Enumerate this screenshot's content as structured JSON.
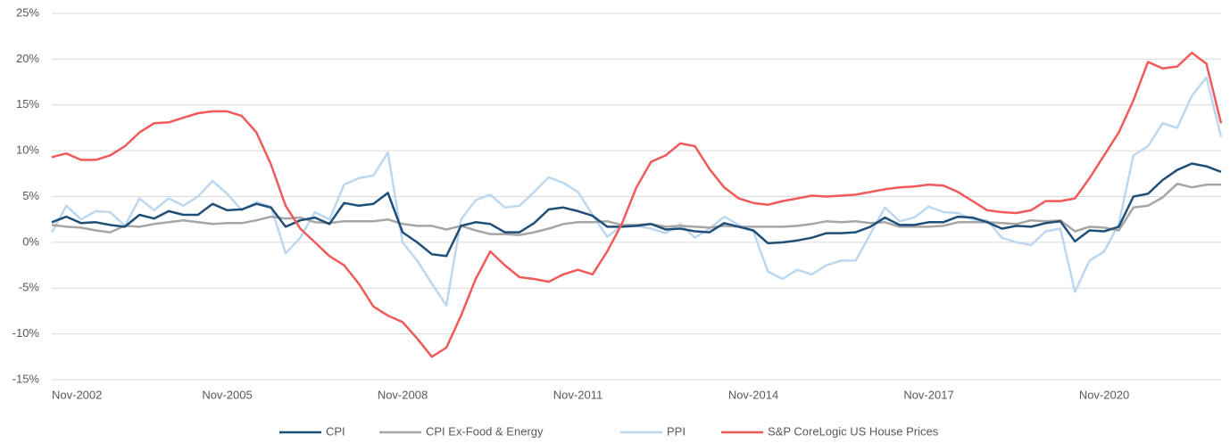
{
  "chart_data": {
    "type": "line",
    "categories": [
      "Nov-2002",
      null,
      null,
      null,
      null,
      null,
      null,
      null,
      null,
      null,
      null,
      null,
      "Nov-2005",
      null,
      null,
      null,
      null,
      null,
      null,
      null,
      null,
      null,
      null,
      null,
      "Nov-2008",
      null,
      null,
      null,
      null,
      null,
      null,
      null,
      null,
      null,
      null,
      null,
      "Nov-2011",
      null,
      null,
      null,
      null,
      null,
      null,
      null,
      null,
      null,
      null,
      null,
      "Nov-2014",
      null,
      null,
      null,
      null,
      null,
      null,
      null,
      null,
      null,
      null,
      null,
      "Nov-2017",
      null,
      null,
      null,
      null,
      null,
      null,
      null,
      null,
      null,
      null,
      null,
      "Nov-2020",
      null,
      null,
      null,
      null,
      null,
      null,
      null,
      null
    ],
    "series": [
      {
        "name": "CPI",
        "color": "#1f4e79",
        "values": [
          2.2,
          2.8,
          2.1,
          2.2,
          1.9,
          1.7,
          3.0,
          2.6,
          3.4,
          3.0,
          3.0,
          4.2,
          3.5,
          3.6,
          4.2,
          3.8,
          1.7,
          2.4,
          2.7,
          2.0,
          4.3,
          4.0,
          4.2,
          5.4,
          1.1,
          0.0,
          -1.3,
          -1.5,
          1.8,
          2.2,
          2.0,
          1.1,
          1.1,
          2.1,
          3.6,
          3.8,
          3.4,
          2.9,
          1.7,
          1.7,
          1.8,
          2.0,
          1.4,
          1.5,
          1.2,
          1.1,
          2.1,
          1.7,
          1.3,
          -0.1,
          0.0,
          0.2,
          0.5,
          1.0,
          1.0,
          1.1,
          1.7,
          2.7,
          1.9,
          1.9,
          2.2,
          2.2,
          2.8,
          2.7,
          2.2,
          1.5,
          1.8,
          1.7,
          2.1,
          2.3,
          0.1,
          1.3,
          1.2,
          1.7,
          5.0,
          5.3,
          6.8,
          7.9,
          8.6,
          8.3,
          7.7
        ]
      },
      {
        "name": "CPI Ex-Food & Energy",
        "color": "#a6a6a6",
        "values": [
          1.9,
          1.7,
          1.6,
          1.3,
          1.1,
          1.8,
          1.7,
          2.0,
          2.2,
          2.4,
          2.2,
          2.0,
          2.1,
          2.1,
          2.4,
          2.8,
          2.6,
          2.7,
          2.2,
          2.1,
          2.3,
          2.3,
          2.3,
          2.5,
          2.0,
          1.8,
          1.8,
          1.4,
          1.8,
          1.3,
          0.9,
          0.9,
          0.8,
          1.1,
          1.5,
          2.0,
          2.2,
          2.2,
          2.3,
          1.9,
          1.9,
          2.0,
          1.7,
          1.8,
          1.7,
          1.6,
          1.8,
          1.7,
          1.7,
          1.7,
          1.7,
          1.8,
          2.0,
          2.3,
          2.2,
          2.3,
          2.1,
          2.2,
          1.7,
          1.7,
          1.7,
          1.8,
          2.2,
          2.2,
          2.2,
          2.1,
          2.0,
          2.4,
          2.3,
          2.4,
          1.2,
          1.7,
          1.6,
          1.3,
          3.8,
          4.0,
          4.9,
          6.4,
          6.0,
          6.3,
          6.3
        ]
      },
      {
        "name": "PPI",
        "color": "#bdd7ee",
        "values": [
          1.1,
          4.0,
          2.5,
          3.4,
          3.3,
          1.8,
          4.8,
          3.5,
          4.8,
          4.0,
          5.0,
          6.7,
          5.3,
          3.5,
          4.4,
          3.9,
          -1.2,
          0.5,
          3.3,
          2.5,
          6.3,
          7.0,
          7.3,
          9.8,
          0.0,
          -2.0,
          -4.5,
          -6.9,
          2.5,
          4.6,
          5.2,
          3.8,
          4.0,
          5.5,
          7.1,
          6.5,
          5.5,
          3.0,
          0.6,
          1.8,
          1.8,
          1.5,
          1.0,
          2.0,
          0.5,
          1.5,
          2.8,
          1.9,
          1.2,
          -3.2,
          -4.0,
          -3.0,
          -3.5,
          -2.5,
          -2.0,
          -2.0,
          0.9,
          3.8,
          2.3,
          2.7,
          3.9,
          3.3,
          3.2,
          2.5,
          2.4,
          0.5,
          0.0,
          -0.3,
          1.2,
          1.5,
          -5.4,
          -2.0,
          -1.0,
          2.0,
          9.5,
          10.5,
          13.0,
          12.5,
          16.0,
          18.0,
          11.5
        ]
      },
      {
        "name": "S&P CoreLogic US House Prices",
        "color": "#f05a5b",
        "values": [
          9.3,
          9.7,
          9.0,
          9.0,
          9.5,
          10.5,
          12.0,
          13.0,
          13.1,
          13.6,
          14.1,
          14.3,
          14.3,
          13.8,
          12.0,
          8.5,
          4.0,
          1.5,
          0,
          -1.5,
          -2.5,
          -4.5,
          -7.0,
          -8.0,
          -8.7,
          -10.5,
          -12.5,
          -11.5,
          -8.0,
          -4.0,
          -1.0,
          -2.5,
          -3.8,
          -4.0,
          -4.3,
          -3.5,
          -3.0,
          -3.5,
          -1.0,
          2.0,
          6.0,
          8.8,
          9.5,
          10.8,
          10.5,
          8.0,
          6.0,
          4.8,
          4.3,
          4.1,
          4.5,
          4.8,
          5.1,
          5.0,
          5.1,
          5.2,
          5.5,
          5.8,
          6.0,
          6.1,
          6.3,
          6.2,
          5.5,
          4.5,
          3.5,
          3.3,
          3.2,
          3.5,
          4.5,
          4.5,
          4.8,
          7.0,
          9.5,
          12.0,
          15.5,
          19.7,
          19.0,
          19.2,
          20.7,
          19.5,
          13.0
        ]
      }
    ],
    "ylim": [
      -15,
      25
    ],
    "yticks": [
      {
        "value": -15,
        "label": "-15%"
      },
      {
        "value": -10,
        "label": "-10%"
      },
      {
        "value": -5,
        "label": "-5%"
      },
      {
        "value": 0,
        "label": "0%"
      },
      {
        "value": 5,
        "label": "5%"
      },
      {
        "value": 10,
        "label": "10%"
      },
      {
        "value": 15,
        "label": "15%"
      },
      {
        "value": 20,
        "label": "20%"
      },
      {
        "value": 25,
        "label": "25%"
      }
    ],
    "grid": true,
    "legend": "bottom"
  }
}
